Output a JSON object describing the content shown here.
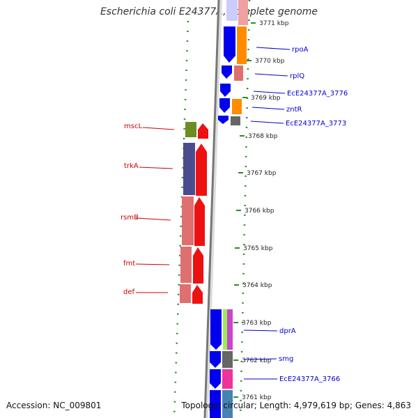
{
  "title": "Escherichia coli E24377A, complete genome",
  "footer": {
    "accession": "Accession: NC_009801",
    "summary": "Topology: circular; Length: 4,979,619 bp; Genes: 4,863"
  },
  "colors": {
    "backbone": "#777777",
    "dots": "#2e8b2e",
    "left_label": "#cc0000",
    "right_label": "#0000cc"
  },
  "scale": {
    "unit": "kbp",
    "ticks": [
      "3771 kbp",
      "3770 kbp",
      "3769 kbp",
      "3768 kbp",
      "3767 kbp",
      "3766 kbp",
      "3765 kbp",
      "3764 kbp",
      "3763 kbp",
      "3762 kbp",
      "3761 kbp"
    ]
  },
  "genes_left": [
    {
      "label": "mscL",
      "color": "#6b8e23"
    },
    {
      "label": "trkA",
      "color": "#4b4b8f"
    },
    {
      "label": "rsmB",
      "color": "#e07070"
    },
    {
      "label": "fmt",
      "color": "#e07070"
    },
    {
      "label": "def",
      "color": "#e07070"
    }
  ],
  "genes_right": [
    {
      "label": "rpoA",
      "color": "#0000ee"
    },
    {
      "label": "rplQ",
      "color": "#0000ee"
    },
    {
      "label": "EcE24377A_3776",
      "color": "#0000ee"
    },
    {
      "label": "zntR",
      "color": "#0000ee"
    },
    {
      "label": "EcE24377A_3773",
      "color": "#0000ee"
    },
    {
      "label": "dprA",
      "color": "#0000ee"
    },
    {
      "label": "smg",
      "color": "#0000ee"
    },
    {
      "label": "EcE24377A_3766",
      "color": "#0000ee"
    }
  ]
}
